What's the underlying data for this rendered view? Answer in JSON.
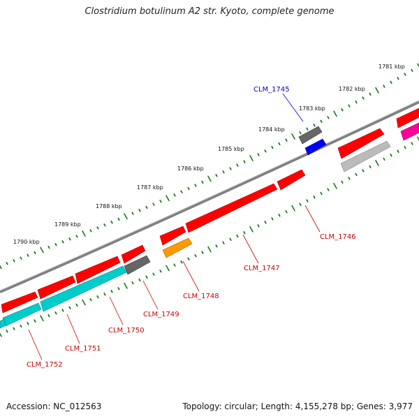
{
  "title": "Clostridium botulinum A2 str. Kyoto, complete genome",
  "footer": {
    "accession": "Accession: NC_012563",
    "summary": "Topology: circular; Length: 4,155,278 bp; Genes: 3,977"
  },
  "colors": {
    "backbone": "#808080",
    "ticks": "#1a7a1a",
    "gene_red": "#ff0000",
    "gene_gray": "#666666",
    "gene_blue": "#0000ff",
    "gene_orange": "#ff9900",
    "gene_cyan": "#00cccc",
    "gene_magenta": "#ff0099",
    "gene_silver": "#bbbbbb",
    "label_red": "#cc0000",
    "label_blue": "#0000cc"
  },
  "scale_labels": [
    "1781 kbp",
    "1782 kbp",
    "1783 kbp",
    "1784 kbp",
    "1785 kbp",
    "1786 kbp",
    "1787 kbp",
    "1788 kbp",
    "1789 kbp",
    "1790 kbp"
  ],
  "gene_labels": [
    {
      "text": "CLM_1745",
      "color": "blue"
    },
    {
      "text": "CLM_1746",
      "color": "red"
    },
    {
      "text": "CLM_1747",
      "color": "red"
    },
    {
      "text": "CLM_1748",
      "color": "red"
    },
    {
      "text": "CLM_1749",
      "color": "red"
    },
    {
      "text": "CLM_1750",
      "color": "red"
    },
    {
      "text": "CLM_1751",
      "color": "red"
    },
    {
      "text": "CLM_1752",
      "color": "red"
    }
  ]
}
